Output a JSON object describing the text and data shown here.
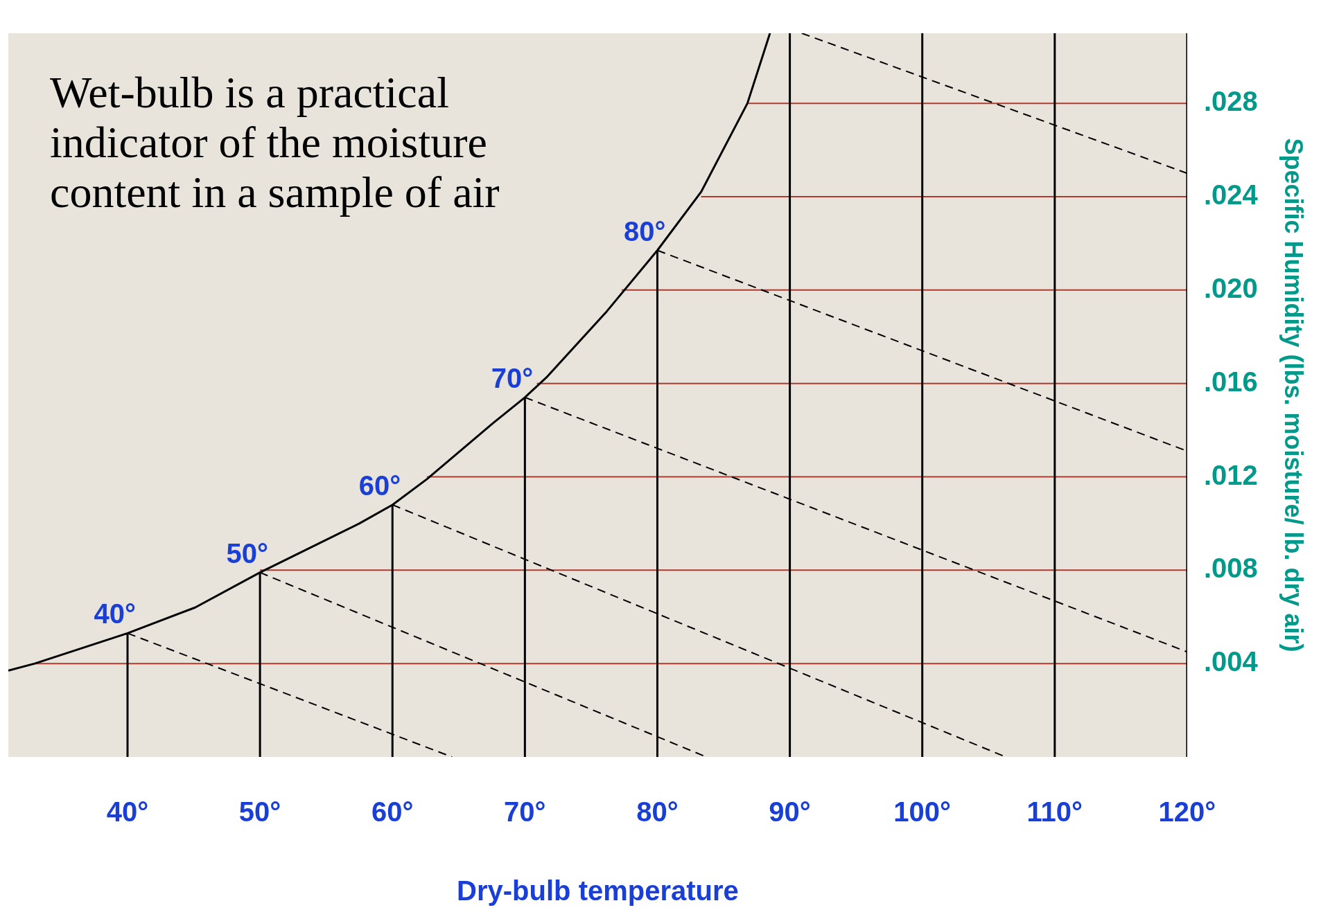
{
  "chart_data": {
    "type": "line",
    "xlabel": "Dry-bulb temperature",
    "ylabel": "Specific Humidity (lbs. moisture/ lb. dry air)",
    "xlim": [
      31,
      120
    ],
    "xticks": [
      {
        "value": 40,
        "label": "40°"
      },
      {
        "value": 50,
        "label": "50°"
      },
      {
        "value": 60,
        "label": "60°"
      },
      {
        "value": 70,
        "label": "70°"
      },
      {
        "value": 80,
        "label": "80°"
      },
      {
        "value": 90,
        "label": "90°"
      },
      {
        "value": 100,
        "label": "100°"
      },
      {
        "value": 110,
        "label": "110°"
      },
      {
        "value": 120,
        "label": "120°"
      }
    ],
    "ylim": [
      0,
      0.031
    ],
    "yticks": [
      {
        "value": 0.004,
        "label": ".004"
      },
      {
        "value": 0.008,
        "label": ".008"
      },
      {
        "value": 0.012,
        "label": ".012"
      },
      {
        "value": 0.016,
        "label": ".016"
      },
      {
        "value": 0.02,
        "label": ".020"
      },
      {
        "value": 0.024,
        "label": ".024"
      },
      {
        "value": 0.028,
        "label": ".028"
      }
    ],
    "grid": false,
    "legend": false,
    "marker": "none",
    "annotations": [
      "Wet-bulb is a practical indicator of the moisture content in a sample of air",
      {
        "text": "40°",
        "x": 40,
        "y": 0.0053
      },
      {
        "text": "50°",
        "x": 50,
        "y": 0.0079
      },
      {
        "text": "60°",
        "x": 60,
        "y": 0.0108
      },
      {
        "text": "70°",
        "x": 70,
        "y": 0.0154
      },
      {
        "text": "80°",
        "x": 80,
        "y": 0.0217
      }
    ],
    "series": [
      {
        "color": "#000000",
        "line_style": "solid",
        "x": [
          31,
          33,
          40,
          45.1,
          50,
          57.5,
          60,
          62.6,
          67.6,
          70,
          71.7,
          76.2,
          80,
          83.3,
          86.8,
          88.5
        ],
        "values": [
          0.0037,
          0.004,
          0.0053,
          0.0064,
          0.0079,
          0.01,
          0.0108,
          0.0119,
          0.0143,
          0.0154,
          0.0163,
          0.0191,
          0.0217,
          0.0242,
          0.028,
          0.031
        ]
      },
      {
        "color": "#000000",
        "line_style": "dashed",
        "x": [
          40,
          64.5
        ],
        "values": [
          0.0053,
          0
        ]
      },
      {
        "color": "#000000",
        "line_style": "dashed",
        "x": [
          50,
          83.7
        ],
        "values": [
          0.0079,
          0
        ]
      },
      {
        "color": "#000000",
        "line_style": "dashed",
        "x": [
          60,
          106.3
        ],
        "values": [
          0.0108,
          0
        ]
      },
      {
        "color": "#000000",
        "line_style": "dashed",
        "x": [
          70,
          120
        ],
        "values": [
          0.0154,
          0.0045
        ]
      },
      {
        "color": "#000000",
        "line_style": "dashed",
        "x": [
          80,
          120
        ],
        "values": [
          0.0217,
          0.0131
        ]
      },
      {
        "color": "#000000",
        "line_style": "dashed",
        "x": [
          90.9,
          120
        ],
        "values": [
          0.031,
          0.025
        ]
      },
      {
        "color": "#000000",
        "line_style": "solid",
        "x": [
          40,
          40
        ],
        "values": [
          0,
          0.0053
        ]
      },
      {
        "color": "#000000",
        "line_style": "solid",
        "x": [
          50,
          50
        ],
        "values": [
          0,
          0.0079
        ]
      },
      {
        "color": "#000000",
        "line_style": "solid",
        "x": [
          60,
          60
        ],
        "values": [
          0,
          0.0108
        ]
      },
      {
        "color": "#000000",
        "line_style": "solid",
        "x": [
          70,
          70
        ],
        "values": [
          0,
          0.0154
        ]
      },
      {
        "color": "#000000",
        "line_style": "solid",
        "x": [
          80,
          80
        ],
        "values": [
          0,
          0.0217
        ]
      },
      {
        "color": "#000000",
        "line_style": "solid",
        "x": [
          90,
          90
        ],
        "values": [
          0,
          0.031
        ]
      },
      {
        "color": "#000000",
        "line_style": "solid",
        "x": [
          100,
          100
        ],
        "values": [
          0,
          0.031
        ]
      },
      {
        "color": "#000000",
        "line_style": "solid",
        "x": [
          110,
          110
        ],
        "values": [
          0,
          0.031
        ]
      },
      {
        "color": "#000000",
        "line_style": "solid",
        "x": [
          120,
          120
        ],
        "values": [
          0,
          0.031
        ]
      },
      {
        "color": "#b03a2e",
        "line_style": "solid",
        "x": [
          33,
          120
        ],
        "values": [
          0.004,
          0.004
        ]
      },
      {
        "color": "#b03a2e",
        "line_style": "solid",
        "x": [
          50,
          120
        ],
        "values": [
          0.008,
          0.008
        ]
      },
      {
        "color": "#b03a2e",
        "line_style": "solid",
        "x": [
          62.6,
          120
        ],
        "values": [
          0.012,
          0.012
        ]
      },
      {
        "color": "#b03a2e",
        "line_style": "solid",
        "x": [
          70.9,
          120
        ],
        "values": [
          0.016,
          0.016
        ]
      },
      {
        "color": "#b03a2e",
        "line_style": "solid",
        "x": [
          77.3,
          120
        ],
        "values": [
          0.02,
          0.02
        ]
      },
      {
        "color": "#b03a2e",
        "line_style": "solid",
        "x": [
          83.3,
          120
        ],
        "values": [
          0.024,
          0.024
        ]
      },
      {
        "color": "#b03a2e",
        "line_style": "solid",
        "x": [
          86.8,
          120
        ],
        "values": [
          0.028,
          0.028
        ]
      }
    ]
  }
}
